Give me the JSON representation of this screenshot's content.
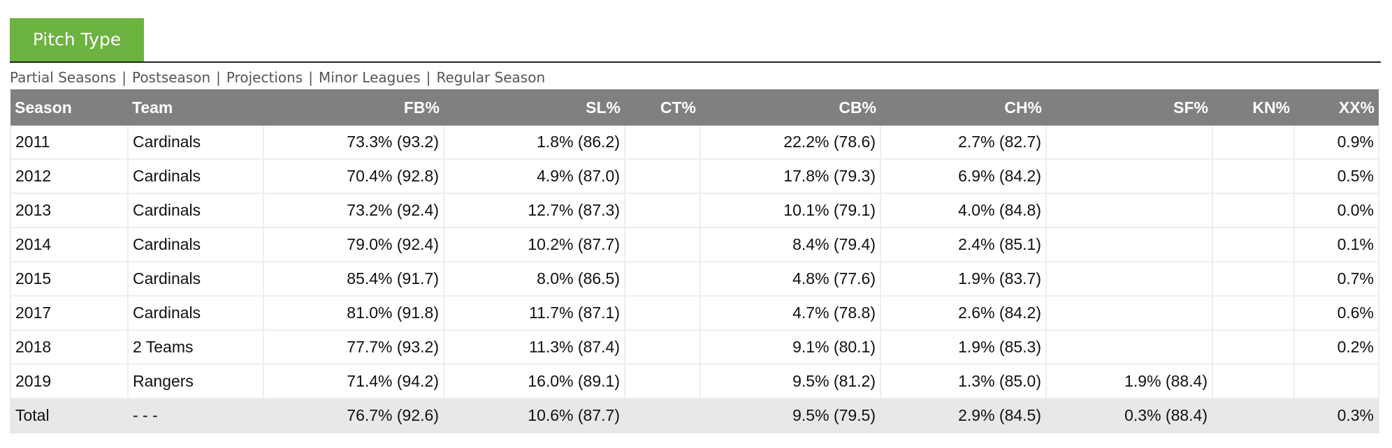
{
  "tab": {
    "label": "Pitch Type"
  },
  "subnav": [
    "Partial Seasons",
    "Postseason",
    "Projections",
    "Minor Leagues",
    "Regular Season"
  ],
  "table": {
    "headers": [
      "Season",
      "Team",
      "FB%",
      "SL%",
      "CT%",
      "CB%",
      "CH%",
      "SF%",
      "KN%",
      "XX%"
    ],
    "rows": [
      [
        "2011",
        "Cardinals",
        "73.3% (93.2)",
        "1.8% (86.2)",
        "",
        "22.2% (78.6)",
        "2.7% (82.7)",
        "",
        "",
        "0.9%"
      ],
      [
        "2012",
        "Cardinals",
        "70.4% (92.8)",
        "4.9% (87.0)",
        "",
        "17.8% (79.3)",
        "6.9% (84.2)",
        "",
        "",
        "0.5%"
      ],
      [
        "2013",
        "Cardinals",
        "73.2% (92.4)",
        "12.7% (87.3)",
        "",
        "10.1% (79.1)",
        "4.0% (84.8)",
        "",
        "",
        "0.0%"
      ],
      [
        "2014",
        "Cardinals",
        "79.0% (92.4)",
        "10.2% (87.7)",
        "",
        "8.4% (79.4)",
        "2.4% (85.1)",
        "",
        "",
        "0.1%"
      ],
      [
        "2015",
        "Cardinals",
        "85.4% (91.7)",
        "8.0% (86.5)",
        "",
        "4.8% (77.6)",
        "1.9% (83.7)",
        "",
        "",
        "0.7%"
      ],
      [
        "2017",
        "Cardinals",
        "81.0% (91.8)",
        "11.7% (87.1)",
        "",
        "4.7% (78.8)",
        "2.6% (84.2)",
        "",
        "",
        "0.6%"
      ],
      [
        "2018",
        "2 Teams",
        "77.7% (93.2)",
        "11.3% (87.4)",
        "",
        "9.1% (80.1)",
        "1.9% (85.3)",
        "",
        "",
        "0.2%"
      ],
      [
        "2019",
        "Rangers",
        "71.4% (94.2)",
        "16.0% (89.1)",
        "",
        "9.5% (81.2)",
        "1.3% (85.0)",
        "1.9% (88.4)",
        "",
        ""
      ]
    ],
    "total": [
      "Total",
      "- - -",
      "76.7% (92.6)",
      "10.6% (87.7)",
      "",
      "9.5% (79.5)",
      "2.9% (84.5)",
      "0.3% (88.4)",
      "",
      "0.3%"
    ]
  }
}
